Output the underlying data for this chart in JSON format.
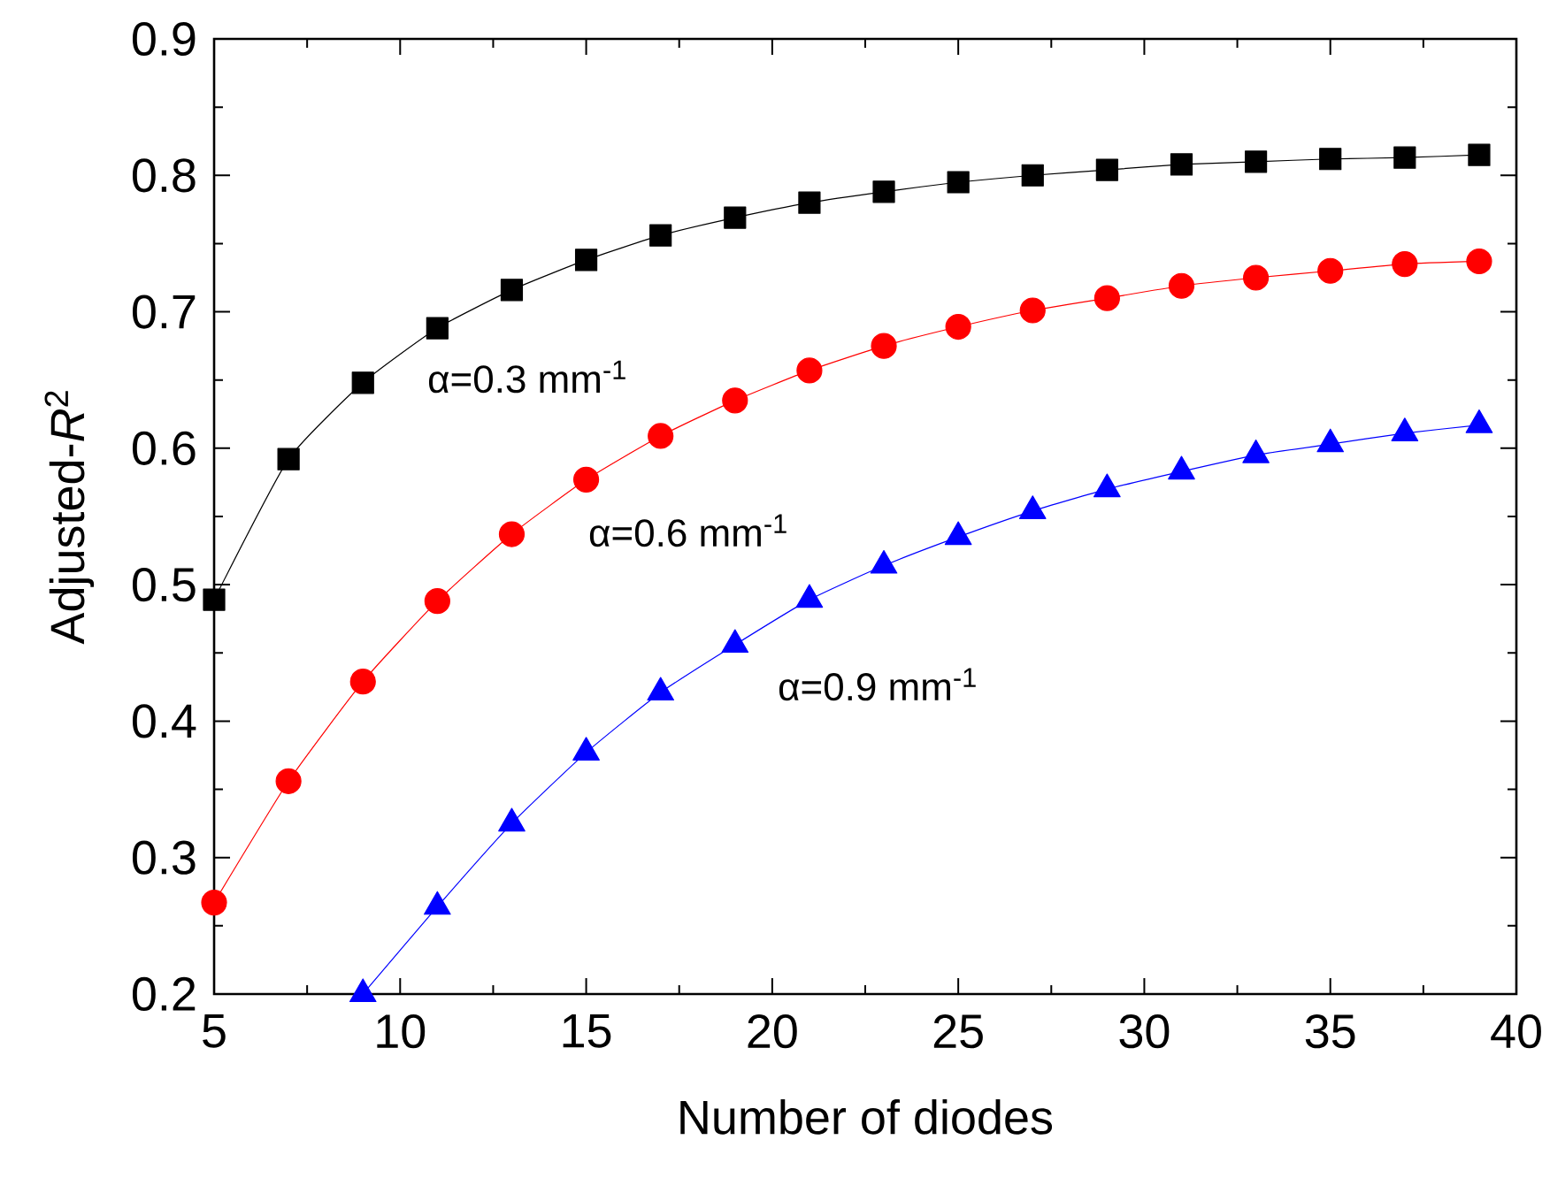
{
  "chart_data": {
    "type": "line",
    "xlabel": "Number of diodes",
    "ylabel": "Adjusted-*R*$^{2}$",
    "x": [
      5,
      7,
      9,
      11,
      13,
      15,
      17,
      19,
      21,
      23,
      25,
      27,
      29,
      31,
      33,
      35,
      37,
      39
    ],
    "series": [
      {
        "color": "#000000",
        "marker": "square",
        "values": [
          0.489,
          0.592,
          0.648,
          0.688,
          0.716,
          0.738,
          0.756,
          0.769,
          0.78,
          0.788,
          0.795,
          0.8,
          0.804,
          0.808,
          0.81,
          0.812,
          0.813,
          0.815
        ]
      },
      {
        "color": "#ff0000",
        "marker": "circle",
        "values": [
          0.267,
          0.356,
          0.429,
          0.488,
          0.537,
          0.577,
          0.609,
          0.635,
          0.657,
          0.675,
          0.689,
          0.701,
          0.71,
          0.719,
          0.725,
          0.73,
          0.735,
          0.737
        ]
      },
      {
        "color": "#0000ff",
        "marker": "triangle",
        "values": [
          null,
          null,
          0.2,
          0.264,
          0.325,
          0.377,
          0.421,
          0.456,
          0.489,
          0.514,
          0.535,
          0.554,
          0.57,
          0.583,
          0.595,
          0.603,
          0.611,
          0.617
        ]
      }
    ],
    "annotations": [
      "α=0.3 mm$^{-1}$",
      "α=0.6 mm$^{-1}$",
      "α=0.9 mm$^{-1}$"
    ],
    "xlim": [
      5,
      40
    ],
    "ylim": [
      0.2,
      0.9
    ],
    "xticks": [
      5,
      10,
      15,
      20,
      25,
      30,
      35,
      40
    ],
    "yticks": [
      0.2,
      0.3,
      0.4,
      0.5,
      0.6,
      0.7,
      0.8,
      0.9
    ],
    "line_style": "solid"
  }
}
